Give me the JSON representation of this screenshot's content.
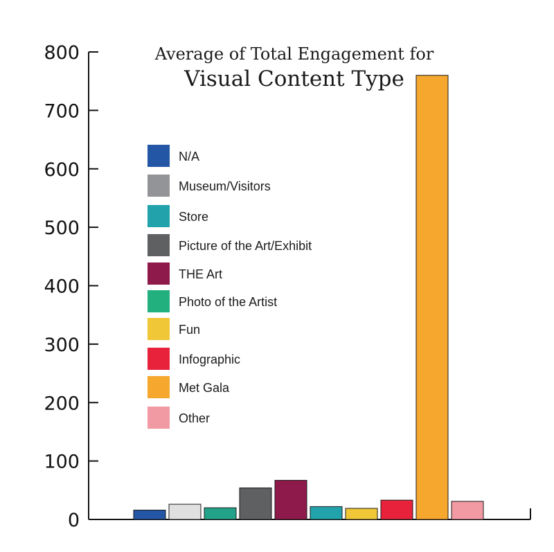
{
  "chart_data": {
    "type": "bar",
    "title": "Average of Total Engagement for",
    "subtitle": "Visual Content Type",
    "xlabel": "",
    "ylabel": "",
    "ylim": [
      0,
      800
    ],
    "yticks": [
      "0",
      "100",
      "200",
      "300",
      "400",
      "500",
      "600",
      "700",
      "800"
    ],
    "grid": false,
    "legend_placement": "left-inside",
    "categories": [
      "N/A",
      "Museum/Visitors",
      "Store",
      "Picture of the Art/Exhibit",
      "THE Art",
      "Photo of the Artist",
      "Fun",
      "Infographic",
      "Met Gala",
      "Other"
    ],
    "values": [
      16,
      26,
      20,
      54,
      67,
      22,
      19,
      33,
      760,
      31
    ],
    "colors": [
      "#2356a5",
      "#e0e0e0",
      "#23a28a",
      "#5f6062",
      "#8e1a4c",
      "#22a3ac",
      "#f0c737",
      "#e8223a",
      "#f6a72e",
      "#f19aa3"
    ],
    "legend": [
      {
        "label": "N/A",
        "color": "#2356a5"
      },
      {
        "label": "Museum/Visitors",
        "color": "#929497"
      },
      {
        "label": "Store",
        "color": "#22a3ac"
      },
      {
        "label": "Picture of the Art/Exhibit",
        "color": "#5f6062"
      },
      {
        "label": "THE Art",
        "color": "#8e1a4c"
      },
      {
        "label": "Photo of the Artist",
        "color": "#23b07f"
      },
      {
        "label": "Fun",
        "color": "#f0c737"
      },
      {
        "label": "Infographic",
        "color": "#e8223a"
      },
      {
        "label": "Met Gala",
        "color": "#f6a72e"
      },
      {
        "label": "Other",
        "color": "#f19aa3"
      }
    ]
  }
}
